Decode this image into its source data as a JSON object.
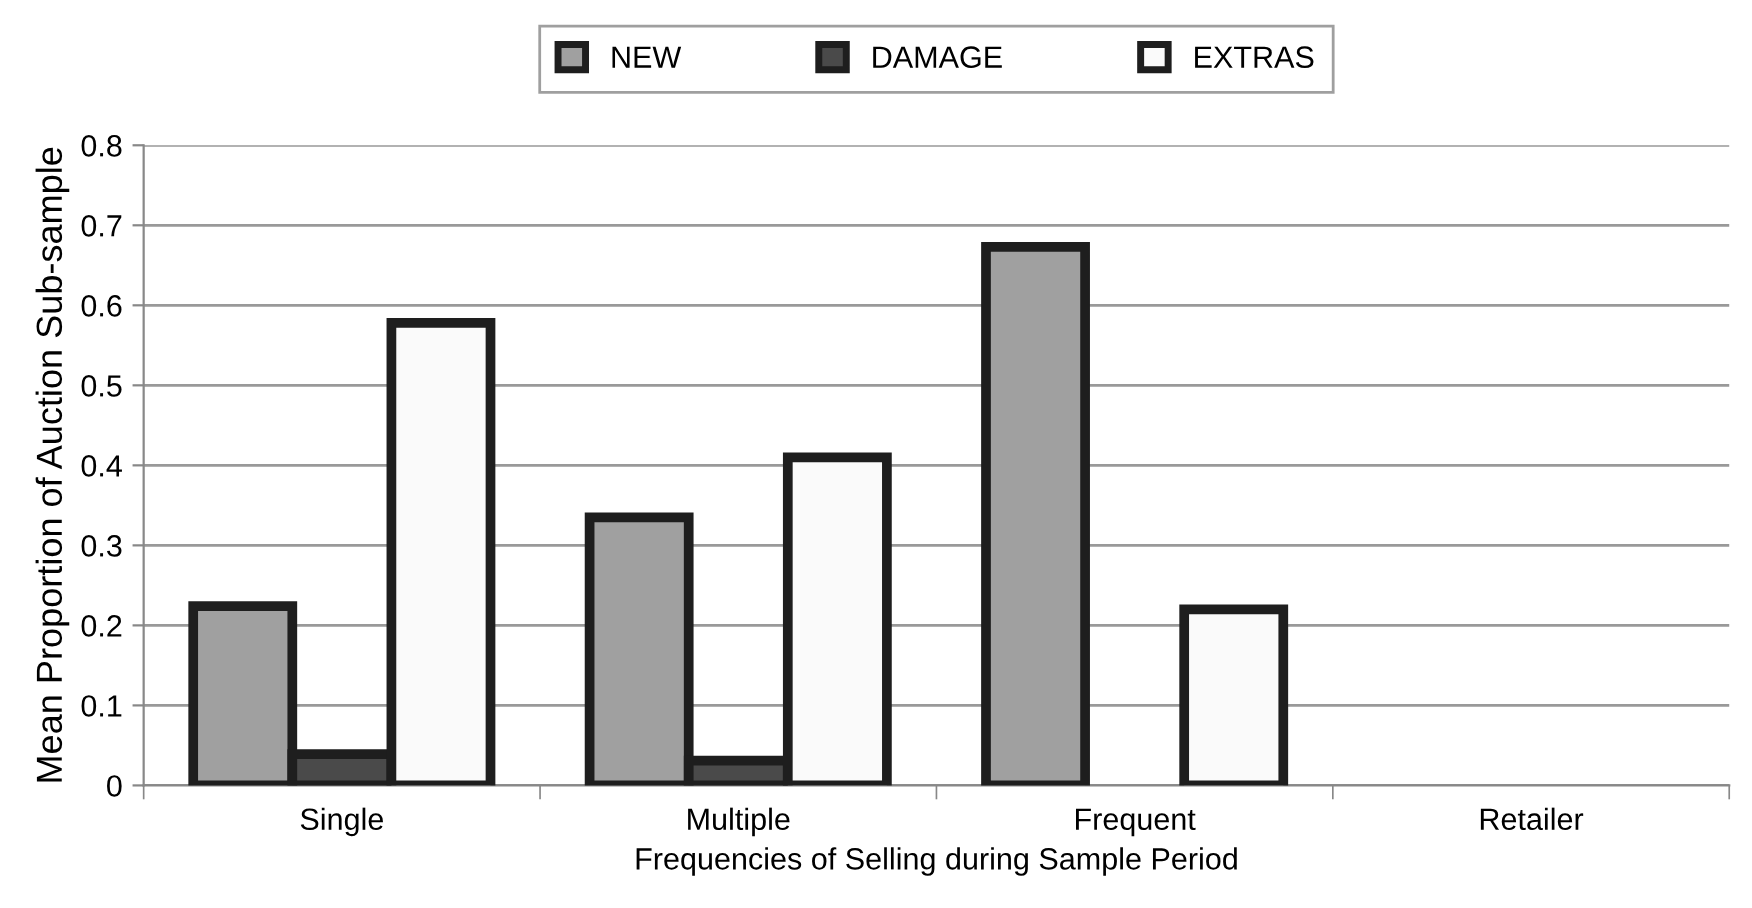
{
  "chart_data": {
    "type": "bar",
    "xlabel": "Frequencies of Selling during Sample Period",
    "ylabel": "Mean Proportion of Auction Sub-sample",
    "categories": [
      "Single",
      "Multiple",
      "Frequent",
      "Retailer"
    ],
    "series": [
      {
        "name": "NEW",
        "color": "#a0a0a0",
        "values": [
          0.224,
          0.335,
          0.673,
          null
        ]
      },
      {
        "name": "DAMAGE",
        "color": "#4a4a4a",
        "values": [
          0.039,
          0.031,
          null,
          null
        ]
      },
      {
        "name": "EXTRAS",
        "color": "#fafafa",
        "values": [
          0.578,
          0.41,
          0.22,
          null
        ]
      }
    ],
    "ylim": [
      0,
      0.8
    ],
    "yticks": [
      0,
      0.1,
      0.2,
      0.3,
      0.4,
      0.5,
      0.6,
      0.7,
      0.8
    ],
    "grid": "y",
    "legend": "top"
  }
}
